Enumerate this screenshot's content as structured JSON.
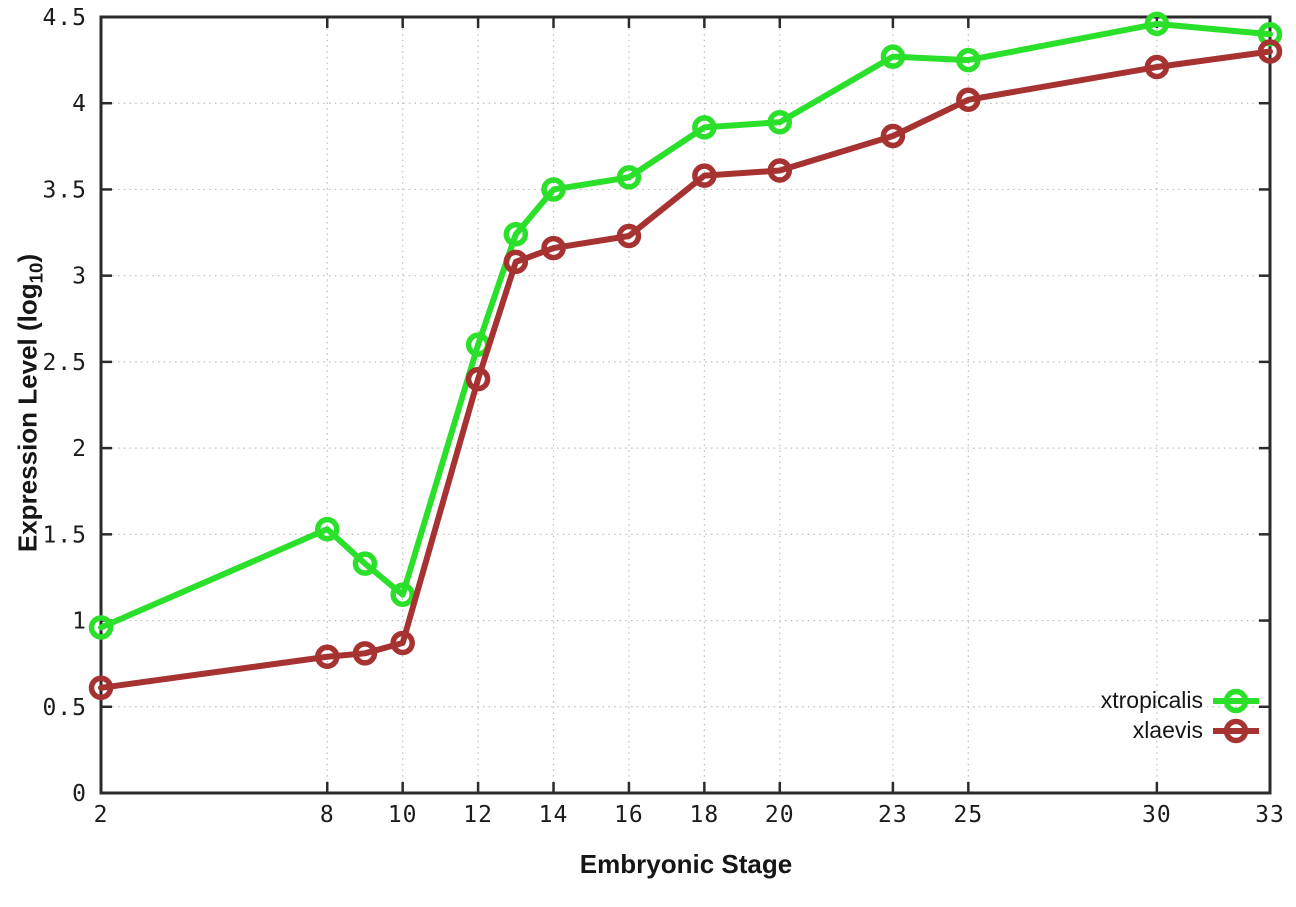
{
  "figure": {
    "background": "#ffffff",
    "border_color": "#2b2b2b",
    "grid_color": "#bdbdbd",
    "text_color": "#1c1c1c",
    "tick_font_size": 23,
    "line_width": 6,
    "marker_radius": 9.5,
    "marker_stroke": 5.5
  },
  "chart_data": {
    "type": "line",
    "title": "",
    "xlabel": "Embryonic Stage",
    "ylabel": "Expression Level (log10)",
    "ylabel_parts": {
      "prefix": "Expression Level (log",
      "sub": "10",
      "suffix": ")"
    },
    "xlim": [
      2,
      33
    ],
    "ylim": [
      0,
      4.5
    ],
    "grid": true,
    "legend_position": "bottom-right-inside",
    "xticks": [
      2,
      8,
      10,
      12,
      14,
      16,
      18,
      20,
      23,
      25,
      30,
      33
    ],
    "xtick_labels": [
      "2",
      "8",
      "10",
      "12",
      "14",
      "16",
      "18",
      "20",
      "23",
      "25",
      "30",
      "33"
    ],
    "yticks": [
      0,
      0.5,
      1,
      1.5,
      2,
      2.5,
      3,
      3.5,
      4,
      4.5
    ],
    "ytick_labels": [
      "0",
      "0.5",
      "1",
      "1.5",
      "2",
      "2.5",
      "3",
      "3.5",
      "4",
      "4.5"
    ],
    "x": [
      2,
      8,
      9,
      10,
      12,
      13,
      14,
      16,
      18,
      20,
      23,
      25,
      30,
      33
    ],
    "series": [
      {
        "name": "xtropicalis",
        "color": "#2ae02a",
        "marker": "open-circle",
        "values": [
          0.96,
          1.53,
          1.33,
          1.15,
          2.6,
          3.24,
          3.5,
          3.57,
          3.86,
          3.89,
          4.27,
          4.25,
          4.46,
          4.4
        ]
      },
      {
        "name": "xlaevis",
        "color": "#a63232",
        "marker": "open-circle",
        "values": [
          0.61,
          0.79,
          0.81,
          0.87,
          2.4,
          3.08,
          3.16,
          3.23,
          3.58,
          3.61,
          3.81,
          4.02,
          4.21,
          4.3
        ]
      }
    ]
  }
}
